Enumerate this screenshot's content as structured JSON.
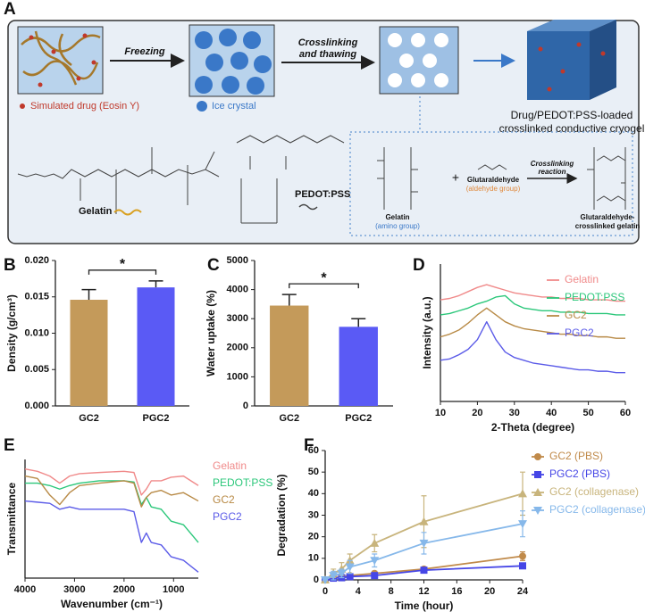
{
  "diagram": {
    "panel": "A",
    "step1": "Freezing",
    "step2": [
      "Crosslinking",
      "and thawing"
    ],
    "drug_legend": "Simulated drug (Eosin Y)",
    "ice_legend": "Ice crystal",
    "product": [
      "Drug/PEDOT:PSS-loaded",
      "crosslinked conductive cryogel"
    ],
    "gelatin_label": "Gelatin",
    "pedot_label": "PEDOT:PSS",
    "reaction": {
      "reactant1": "Gelatin",
      "reactant1_note": "(amino group)",
      "plus": "+",
      "reactant2": "Glutaraldehyde",
      "reactant2_note": "(aldehyde group)",
      "condition": [
        "Crosslinking",
        "reaction"
      ],
      "product": [
        "Glutaraldehyde-",
        "crosslinked gelatin"
      ]
    }
  },
  "chart_data": [
    {
      "type": "bar",
      "panel": "B",
      "ylabel": "Density (g/cm³)",
      "categories": [
        "GC2",
        "PGC2"
      ],
      "values": [
        0.0146,
        0.0163
      ],
      "errors": [
        0.0014,
        0.0009
      ],
      "colors": [
        "#c49a5a",
        "#5a5af5"
      ],
      "ylim": [
        0,
        0.02
      ],
      "yticks": [
        {
          "value": 0,
          "label": "0.000"
        },
        {
          "value": 0.005,
          "label": "0.005"
        },
        {
          "value": 0.01,
          "label": "0.010"
        },
        {
          "value": 0.015,
          "label": "0.015"
        },
        {
          "value": 0.02,
          "label": "0.020"
        }
      ],
      "annotation": "*"
    },
    {
      "type": "bar",
      "panel": "C",
      "ylabel": "Water uptake (%)",
      "categories": [
        "GC2",
        "PGC2"
      ],
      "values": [
        3450,
        2720
      ],
      "errors": [
        380,
        280
      ],
      "colors": [
        "#c49a5a",
        "#5a5af5"
      ],
      "ylim": [
        0,
        5000
      ],
      "yticks": [
        0,
        1000,
        2000,
        3000,
        4000,
        5000
      ],
      "annotation": "*"
    },
    {
      "type": "line",
      "panel": "D",
      "xlabel": "2-Theta (degree)",
      "ylabel": "Intensity (a.u.)",
      "x": [
        10,
        12.5,
        15,
        17.5,
        20,
        22.5,
        25,
        27.5,
        30,
        32.5,
        35,
        37.5,
        40,
        42.5,
        45,
        47.5,
        50,
        52.5,
        55,
        57.5,
        60
      ],
      "xlim": [
        10,
        60
      ],
      "xticks": [
        10,
        20,
        30,
        40,
        50,
        60
      ],
      "ylim": [
        0,
        100
      ],
      "series": [
        {
          "name": "Gelatin",
          "color": "#f08a8a",
          "values": [
            74,
            75,
            77,
            80,
            83,
            85,
            83,
            81,
            79,
            78,
            77,
            76,
            76,
            75,
            75,
            75,
            74,
            74,
            74,
            73,
            73
          ]
        },
        {
          "name": "PEDOT:PSS",
          "color": "#2bc77a",
          "values": [
            63,
            64,
            66,
            68,
            71,
            73,
            76,
            77,
            71,
            68,
            67,
            66,
            66,
            65,
            65,
            65,
            64,
            64,
            64,
            63,
            63
          ]
        },
        {
          "name": "GC2",
          "color": "#b88a46",
          "values": [
            47,
            49,
            52,
            57,
            63,
            68,
            63,
            58,
            55,
            53,
            52,
            51,
            50,
            49,
            49,
            48,
            48,
            47,
            47,
            46,
            46
          ]
        },
        {
          "name": "PGC2",
          "color": "#5b5be8",
          "values": [
            30,
            31,
            34,
            38,
            45,
            58,
            45,
            36,
            32,
            30,
            28,
            27,
            26,
            25,
            24,
            23,
            23,
            22,
            22,
            21,
            21
          ]
        }
      ]
    },
    {
      "type": "line",
      "panel": "E",
      "xlabel": "Wavenumber (cm⁻¹)",
      "ylabel": "Transmittance",
      "x": [
        4000,
        3750,
        3500,
        3300,
        3100,
        2900,
        2500,
        2000,
        1800,
        1650,
        1550,
        1450,
        1250,
        1050,
        800,
        500
      ],
      "xlim": [
        4000,
        500
      ],
      "xticks": [
        4000,
        3000,
        2000,
        1000
      ],
      "ylim": [
        0,
        100
      ],
      "series": [
        {
          "name": "Gelatin",
          "color": "#f08a8a",
          "values": [
            92,
            90,
            86,
            80,
            86,
            88,
            89,
            90,
            89,
            70,
            75,
            82,
            82,
            85,
            86,
            78
          ]
        },
        {
          "name": "PEDOT:PSS",
          "color": "#2bc77a",
          "values": [
            80,
            80,
            78,
            75,
            78,
            80,
            82,
            82,
            81,
            62,
            68,
            60,
            58,
            48,
            45,
            30
          ]
        },
        {
          "name": "GC2",
          "color": "#b88a46",
          "values": [
            86,
            84,
            70,
            62,
            72,
            78,
            80,
            82,
            80,
            60,
            68,
            72,
            74,
            70,
            72,
            65
          ]
        },
        {
          "name": "PGC2",
          "color": "#5b5be8",
          "values": [
            65,
            64,
            63,
            58,
            60,
            58,
            58,
            58,
            56,
            30,
            38,
            30,
            28,
            18,
            15,
            5
          ]
        }
      ]
    },
    {
      "type": "line",
      "panel": "F",
      "xlabel": "Time (hour)",
      "ylabel": "Degradation (%)",
      "x": [
        0,
        1,
        2,
        3,
        6,
        12,
        24
      ],
      "xlim": [
        0,
        24
      ],
      "xticks": [
        0,
        4,
        8,
        12,
        16,
        20,
        24
      ],
      "ylim": [
        0,
        60
      ],
      "yticks": [
        0,
        10,
        20,
        30,
        40,
        50,
        60
      ],
      "series": [
        {
          "name": "GC2 (PBS)",
          "color": "#c08a4a",
          "marker": "circle",
          "values": [
            0,
            1,
            1.5,
            2,
            3,
            5,
            11
          ],
          "errors": [
            0,
            0.5,
            0.5,
            0.5,
            1,
            1,
            2
          ]
        },
        {
          "name": "PGC2 (PBS)",
          "color": "#4646e6",
          "marker": "square",
          "values": [
            0,
            0.8,
            1,
            1.5,
            2,
            4.5,
            6.5
          ],
          "errors": [
            0,
            0.3,
            0.3,
            0.4,
            0.5,
            0.8,
            0.8
          ]
        },
        {
          "name": "GC2 (collagenase)",
          "color": "#c8b47c",
          "marker": "triangle",
          "values": [
            0,
            3,
            5,
            9,
            17,
            27,
            40
          ],
          "errors": [
            0,
            2,
            3,
            3,
            4,
            12,
            10
          ]
        },
        {
          "name": "PGC2 (collagenase)",
          "color": "#86b8ea",
          "marker": "triangle-down",
          "values": [
            0,
            2,
            3,
            6,
            9,
            17,
            26
          ],
          "errors": [
            0,
            2,
            2,
            3,
            3,
            5,
            6
          ]
        }
      ]
    }
  ]
}
